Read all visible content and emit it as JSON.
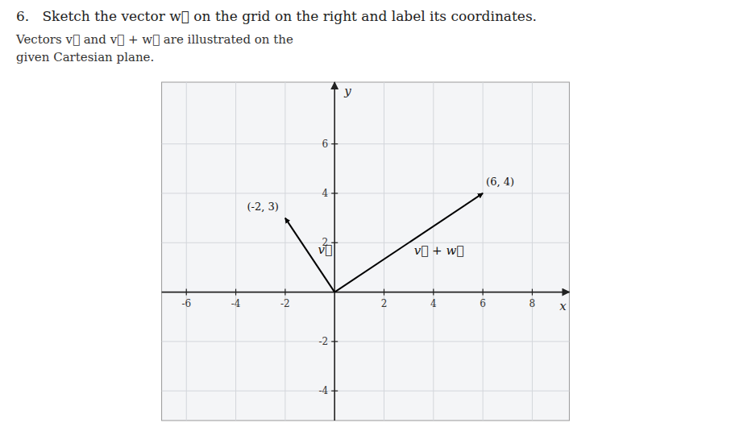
{
  "chart_data": {
    "type": "vector",
    "title": "6.   Sketch the vector w⃗ on the grid on the right and label its coordinates.",
    "subtitle": [
      "Vectors v⃗ and v⃗ + w⃗ are illustrated on the",
      "given Cartesian plane."
    ],
    "x_label": "x",
    "y_label": "y",
    "xlim": [
      -7,
      9.5
    ],
    "ylim": [
      -5.2,
      8.5
    ],
    "xticks": [
      -6,
      -4,
      -2,
      2,
      4,
      6,
      8
    ],
    "yticks": [
      -4,
      -2,
      2,
      4,
      6
    ],
    "grid": true,
    "color": "black",
    "series": [
      {
        "name": "v⃗",
        "x": [
          -2
        ],
        "values": [
          3
        ],
        "value_labels": [
          "(-2, 3)"
        ]
      },
      {
        "name": "v⃗ + w⃗",
        "x": [
          6
        ],
        "values": [
          4
        ],
        "value_labels": [
          "(6, 4)"
        ]
      }
    ]
  }
}
